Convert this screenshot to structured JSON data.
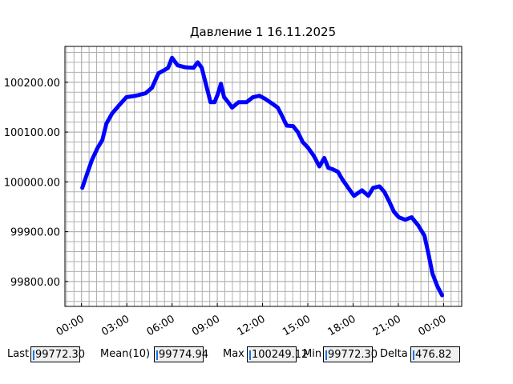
{
  "chart_data": {
    "type": "line",
    "title": "Давление 1 16.11.2025",
    "x": [
      0.05,
      0.32,
      0.69,
      1.06,
      1.38,
      1.65,
      2.02,
      2.44,
      2.97,
      3.61,
      4.25,
      4.67,
      5.1,
      5.47,
      5.74,
      6.0,
      6.37,
      6.9,
      7.43,
      7.7,
      7.97,
      8.28,
      8.55,
      8.82,
      9.03,
      9.24,
      9.45,
      9.72,
      9.98,
      10.41,
      10.94,
      11.36,
      11.79,
      12.21,
      12.64,
      13.01,
      13.28,
      13.6,
      14.02,
      14.34,
      14.66,
      15.03,
      15.4,
      15.77,
      16.09,
      16.36,
      16.68,
      17.0,
      17.31,
      17.68,
      18.06,
      18.59,
      19.01,
      19.33,
      19.75,
      20.07,
      20.39,
      20.71,
      21.03,
      21.46,
      21.88,
      22.31,
      22.73,
      23.0,
      23.26,
      23.58,
      23.9
    ],
    "values": [
      99988,
      100012,
      100044,
      100068,
      100084,
      100117,
      100137,
      100152,
      100170,
      100173,
      100178,
      100189,
      100218,
      100224,
      100229,
      100249.12,
      100234,
      100230,
      100229,
      100240,
      100229,
      100192,
      100160,
      100160,
      100176,
      100197,
      100170,
      100160,
      100149,
      100160,
      100160,
      100170,
      100173,
      100166,
      100157,
      100149,
      100133,
      100113,
      100112,
      100100,
      100080,
      100068,
      100052,
      100031,
      100048,
      100028,
      100025,
      100020,
      100004,
      99988,
      99972,
      99983,
      99972,
      99988,
      99991,
      99980,
      99961,
      99940,
      99929,
      99924,
      99929,
      99913,
      99892,
      99855,
      99816,
      99791,
      99772.3
    ],
    "color": "#0000ff",
    "xlim": [
      -1.1,
      25.2
    ],
    "ylim": [
      99750,
      100272
    ],
    "xticks": [
      {
        "value": 0,
        "label": "00:00"
      },
      {
        "value": 3,
        "label": "03:00"
      },
      {
        "value": 6,
        "label": "06:00"
      },
      {
        "value": 9,
        "label": "09:00"
      },
      {
        "value": 12,
        "label": "12:00"
      },
      {
        "value": 15,
        "label": "15:00"
      },
      {
        "value": 18,
        "label": "18:00"
      },
      {
        "value": 21,
        "label": "21:00"
      },
      {
        "value": 24,
        "label": "00:00"
      }
    ],
    "yticks": [
      {
        "value": 99800,
        "label": "99800.00"
      },
      {
        "value": 99900,
        "label": "99900.00"
      },
      {
        "value": 100000,
        "label": "100000.00"
      },
      {
        "value": 100100,
        "label": "100100.00"
      },
      {
        "value": 100200,
        "label": "100200.00"
      }
    ],
    "grid": true,
    "x_minor_step": 0.5,
    "y_minor_step": 20
  },
  "stats": [
    {
      "label": "Last",
      "value": "99772.30"
    },
    {
      "label": "Mean(10)",
      "value": "99774.94"
    },
    {
      "label": "Max",
      "value": "100249.12"
    },
    {
      "label": "Min",
      "value": "99772.30"
    },
    {
      "label": "Delta",
      "value": "476.82"
    }
  ]
}
